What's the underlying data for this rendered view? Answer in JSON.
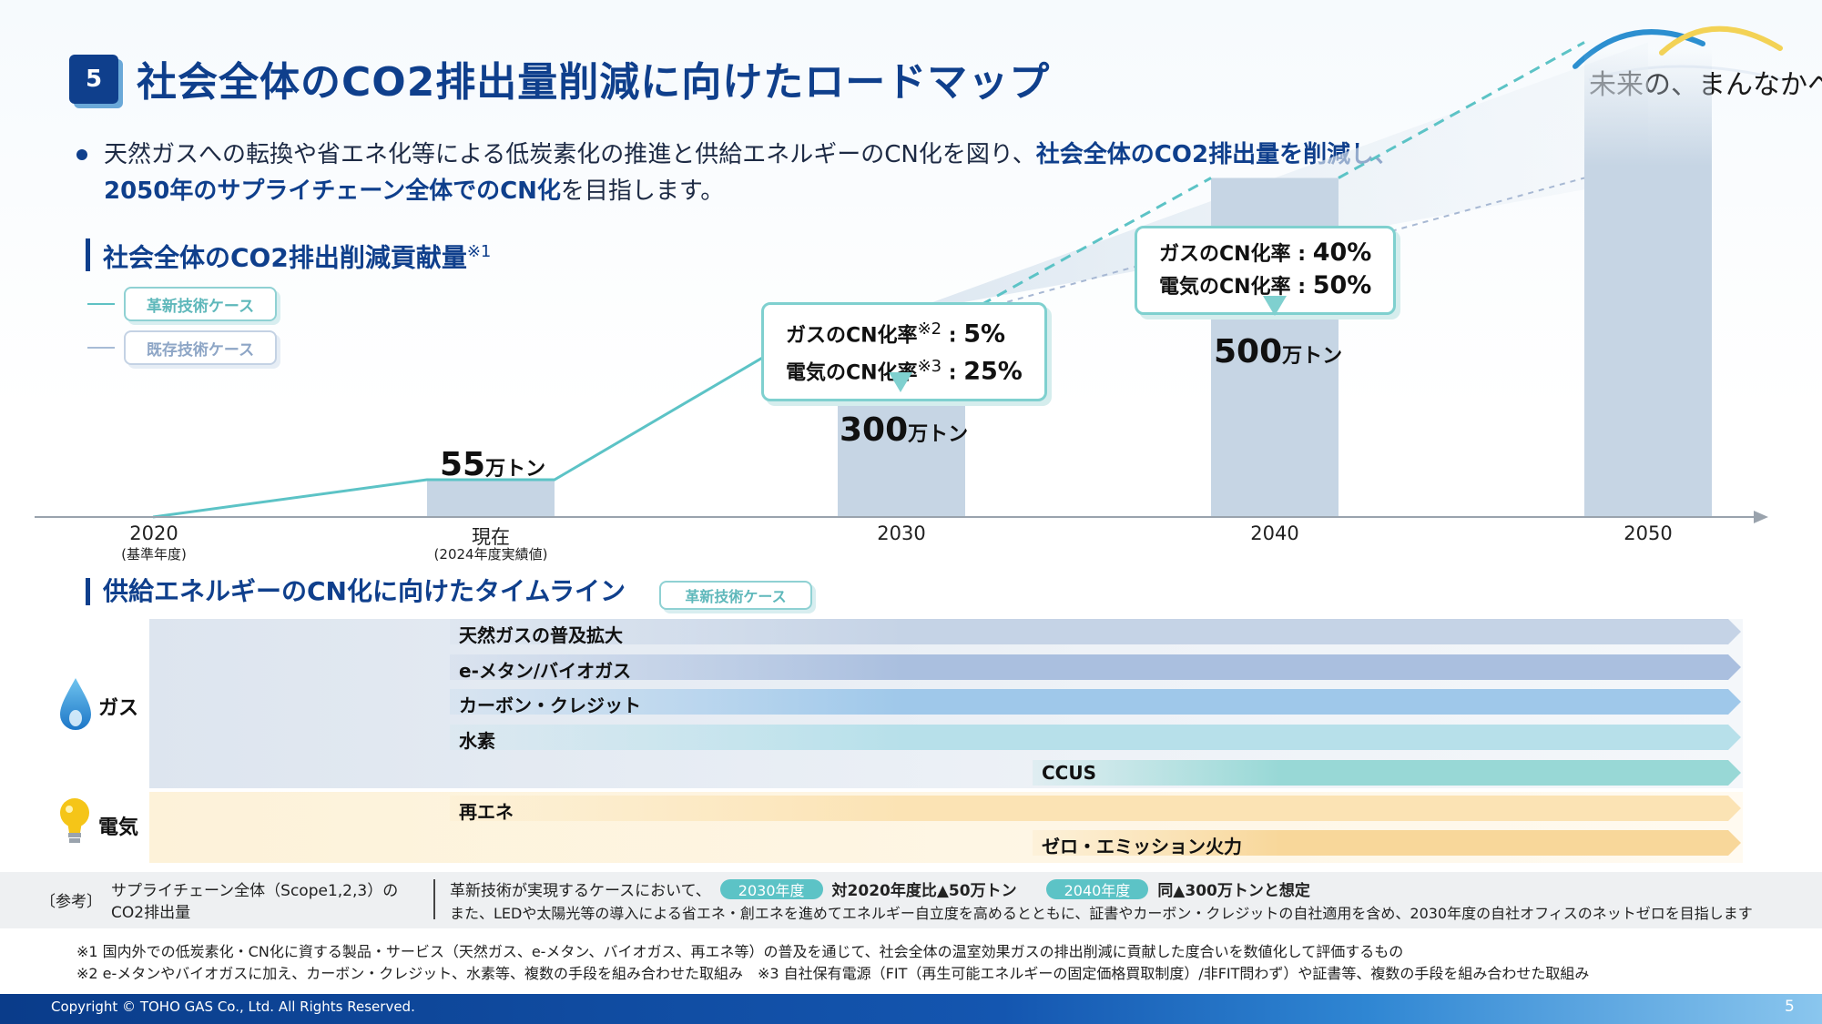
{
  "header": {
    "number": "5",
    "title": "社会全体のCO2排出量削減に向けたロードマップ",
    "logo_text": "未来の、まんなかへ"
  },
  "intro": {
    "text_1": "天然ガスへの転換や省エネ化等による低炭素化の推進と供給エネルギーのCN化を図り、",
    "text_2": "社会全体のCO2排出量を削減し、",
    "text_3": "2050年のサプライチェーン全体でのCN化",
    "text_4": "を目指します。"
  },
  "chart_section": {
    "title": "社会全体のCO2排出削減貢献量",
    "note_mark": "※1",
    "legend": [
      "革新技術ケース",
      "既存技術ケース"
    ]
  },
  "chart_data": {
    "type": "bar",
    "title": "社会全体のCO2排出削減貢献量",
    "categories": [
      "2020",
      "現在",
      "2030",
      "2040",
      "2050"
    ],
    "category_notes": [
      "(基準年度)",
      "(2024年度実績値)",
      "",
      "",
      ""
    ],
    "values": [
      0,
      55,
      300,
      500,
      null
    ],
    "unit": "万トン",
    "labels": [
      "",
      "55",
      "300",
      "500",
      ""
    ],
    "series_lines": [
      {
        "name": "革新技術ケース",
        "x": [
          "2020",
          "現在",
          "2030",
          "2040",
          "2050"
        ],
        "values": [
          0,
          55,
          300,
          500,
          700
        ]
      },
      {
        "name": "既存技術ケース",
        "x": [
          "2030",
          "2040",
          "2050"
        ],
        "values": [
          300,
          400,
          500
        ]
      }
    ],
    "ylim": [
      0,
      750
    ],
    "xlabel": "",
    "ylabel": "",
    "callouts": [
      {
        "at": "2030",
        "line1_label": "ガスのCN化率",
        "line1_mark": "※2",
        "line1_value": "5%",
        "line2_label": "電気のCN化率",
        "line2_mark": "※3",
        "line2_value": "25%"
      },
      {
        "at": "2040",
        "line1_label": "ガスのCN化率",
        "line1_mark": "",
        "line1_value": "40%",
        "line2_label": "電気のCN化率",
        "line2_mark": "",
        "line2_value": "50%"
      }
    ]
  },
  "timeline": {
    "title": "供給エネルギーのCN化に向けたタイムライン",
    "badge": "革新技術ケース",
    "categories": [
      {
        "label": "ガス",
        "icon": "gas-drop-icon"
      },
      {
        "label": "電気",
        "icon": "lightbulb-icon"
      }
    ],
    "rows": [
      {
        "label": "天然ガスの普及拡大",
        "start_year": "2030",
        "color": "#c5d3e6"
      },
      {
        "label": "e-メタン/バイオガス",
        "start_year": "2030",
        "color": "#aabfdf"
      },
      {
        "label": "カーボン・クレジット",
        "start_year": "2030",
        "color": "#9fc8ea"
      },
      {
        "label": "水素",
        "start_year": "2030",
        "color": "#b7e0ea"
      },
      {
        "label": "CCUS",
        "start_year": "2040",
        "color": "#98d8d6"
      },
      {
        "label": "再エネ",
        "start_year": "2030",
        "color": "#fbe3b4"
      },
      {
        "label": "ゼロ・エミッション火力",
        "start_year": "2040",
        "color": "#f8d79a"
      }
    ]
  },
  "reference": {
    "tag": "〔参考〕",
    "label_1": "サプライチェーン全体（Scope1,2,3）の",
    "label_2": "CO2排出量",
    "prefix": "革新技術が実現するケースにおいて、",
    "pill_1": "2030年度",
    "text_1": "対2020年度比▲50万トン",
    "pill_2": "2040年度",
    "text_2": "同▲300万トンと想定",
    "line_2": "また、LEDや太陽光等の導入による省エネ・創エネを進めてエネルギー自立度を高めるとともに、証書やカーボン・クレジットの自社適用を含め、2030年度の自社オフィスのネットゼロを目指します"
  },
  "notes": {
    "note_1": "※1 国内外での低炭素化・CN化に資する製品・サービス（天然ガス、e-メタン、バイオガス、再エネ等）の普及を通じて、社会全体の温室効果ガスの排出削減に貢献した度合いを数値化して評価するもの",
    "note_2": "※2 e-メタンやバイオガスに加え、カーボン・クレジット、水素等、複数の手段を組み合わせた取組み　※3 自社保有電源（FIT（再生可能エネルギーの固定価格買取制度）/非FIT問わず）や証書等、複数の手段を組み合わせた取組み"
  },
  "footer": {
    "copyright": "Copyright © TOHO GAS Co., Ltd. All Rights Reserved.",
    "page": "5"
  },
  "colors": {
    "brand": "#0f3f8c",
    "teal": "#5cc3c6",
    "bar": "#c6d5e4"
  }
}
